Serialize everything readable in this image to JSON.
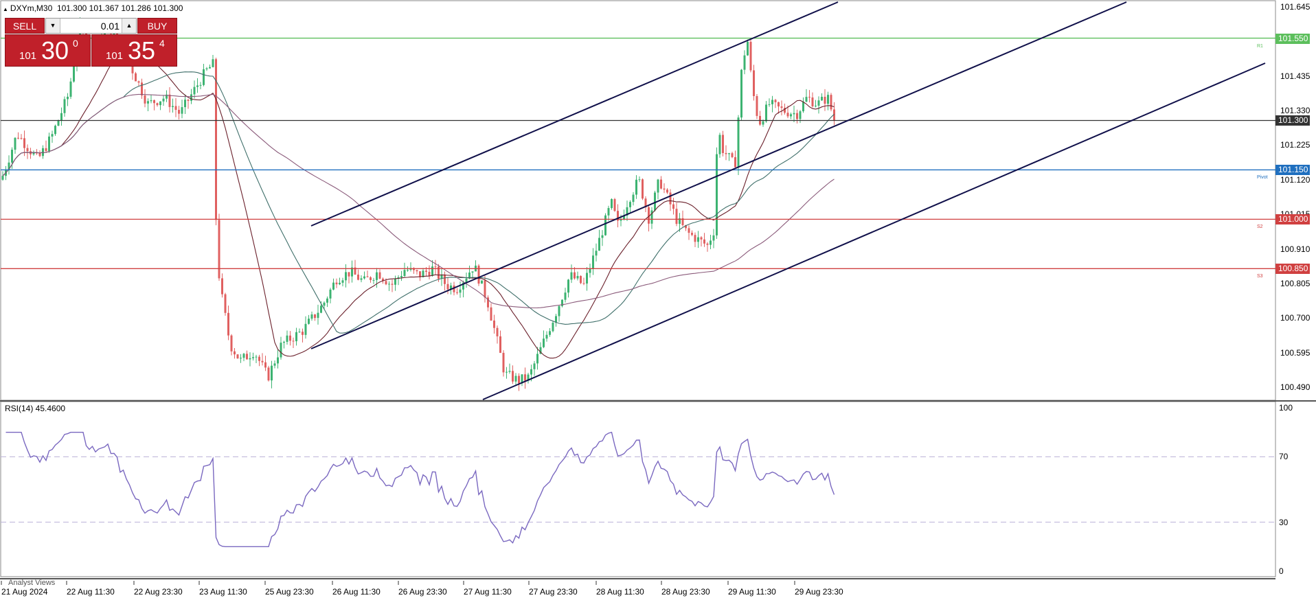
{
  "header": {
    "symbol": "DXYm,M30",
    "ohlc": "101.300 101.367 101.286 101.300"
  },
  "trade_panel": {
    "sell_label": "SELL",
    "buy_label": "BUY",
    "quantity": "0.01",
    "sell_price_small": "101",
    "sell_price_big": "30",
    "sell_price_sup": "0",
    "buy_price_small": "101",
    "buy_price_big": "35",
    "buy_price_sup": "4"
  },
  "price_axis": [
    "101.645",
    "101.540",
    "101.435",
    "101.330",
    "101.225",
    "101.120",
    "101.015",
    "100.910",
    "100.805",
    "100.700",
    "100.595",
    "100.490"
  ],
  "horizontal_lines": [
    {
      "price": "101.550",
      "tag": "R1",
      "color": "#5cbf5c"
    },
    {
      "price": "101.300",
      "tag": "",
      "color": "#333333"
    },
    {
      "price": "101.150",
      "tag": "Pivot",
      "color": "#1f6fbf"
    },
    {
      "price": "101.000",
      "tag": "S2",
      "color": "#d04040"
    },
    {
      "price": "100.850",
      "tag": "S3",
      "color": "#d04040"
    }
  ],
  "rsi": {
    "label": "RSI(14) 45.4600",
    "axis": [
      "100",
      "70",
      "30",
      "0"
    ]
  },
  "time_axis": [
    "21 Aug 2024",
    "22 Aug 11:30",
    "22 Aug 23:30",
    "23 Aug 11:30",
    "25 Aug 23:30",
    "26 Aug 11:30",
    "26 Aug 23:30",
    "27 Aug 11:30",
    "27 Aug 23:30",
    "28 Aug 11:30",
    "28 Aug 23:30",
    "29 Aug 11:30",
    "29 Aug 23:30"
  ],
  "footer": {
    "analyst": "Analyst Views"
  },
  "colors": {
    "bull": "#3cb371",
    "bear": "#e06060",
    "channel": "#10104a",
    "rsi_line": "#7a68c0"
  }
}
